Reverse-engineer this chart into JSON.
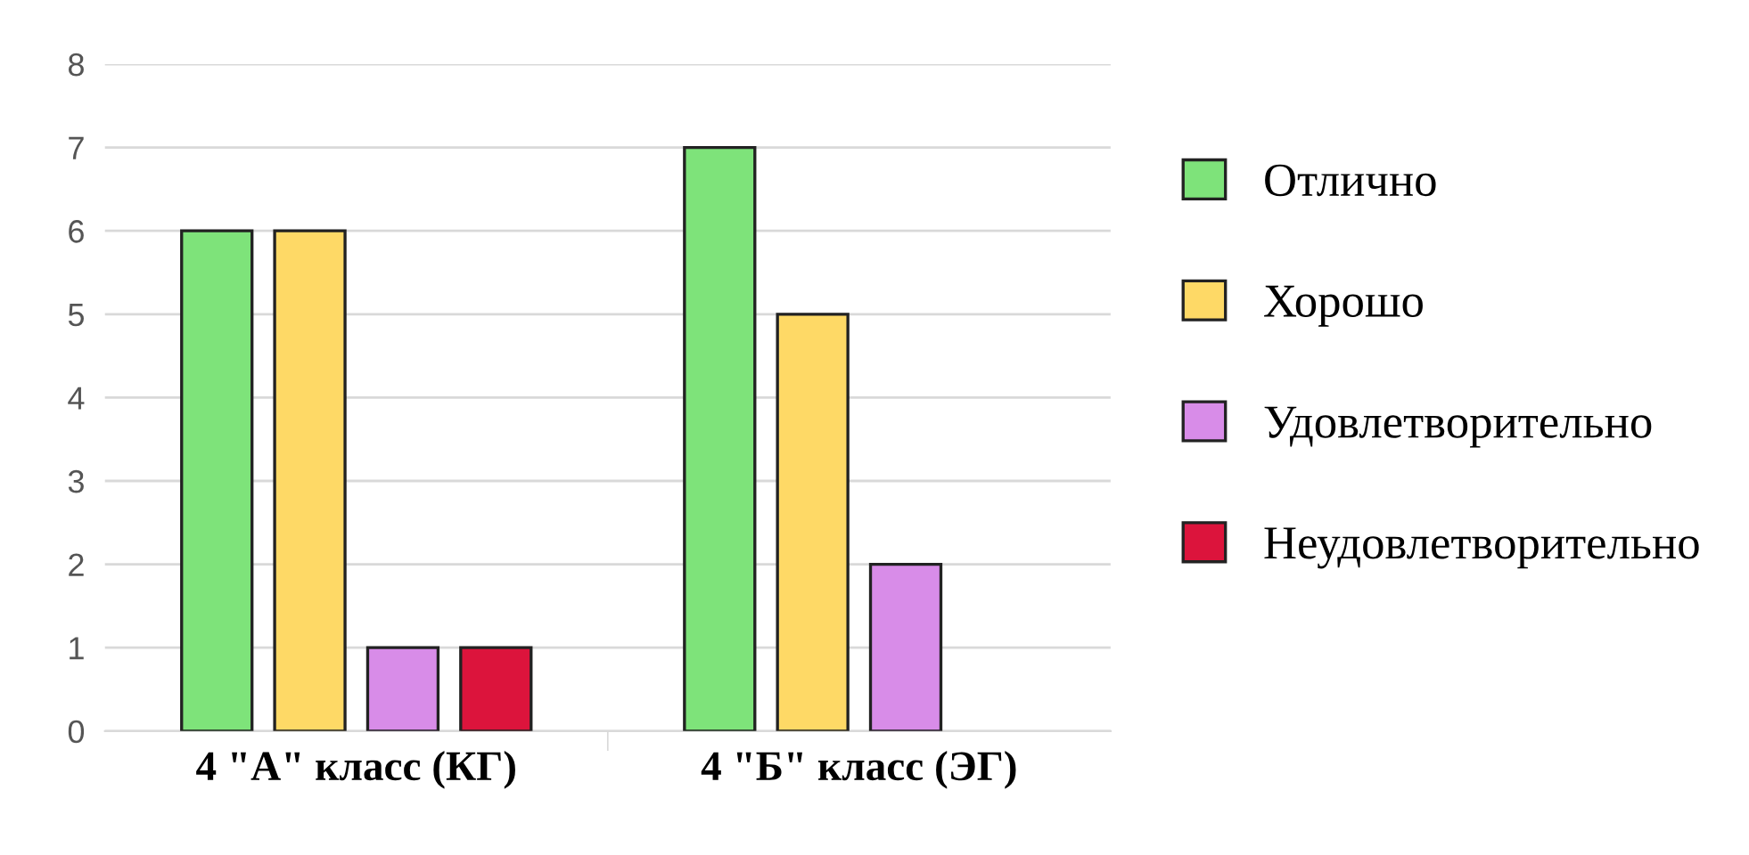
{
  "chart_data": {
    "type": "bar",
    "categories": [
      "4 \"А\" класс (КГ)",
      "4 \"Б\" класс (ЭГ)"
    ],
    "series": [
      {
        "name": "Отлично",
        "color": "#7ee37a",
        "values": [
          6,
          7
        ]
      },
      {
        "name": "Хорошо",
        "color": "#fed966",
        "values": [
          6,
          5
        ]
      },
      {
        "name": "Удовлетворительно",
        "color": "#d88ce8",
        "values": [
          1,
          2
        ]
      },
      {
        "name": "Неудовлетворительно",
        "color": "#dc143c",
        "values": [
          1,
          null
        ]
      }
    ],
    "ylim": [
      0,
      8
    ],
    "yticks": [
      0,
      1,
      2,
      3,
      4,
      5,
      6,
      7,
      8
    ],
    "grid": "y",
    "legend": "right"
  }
}
